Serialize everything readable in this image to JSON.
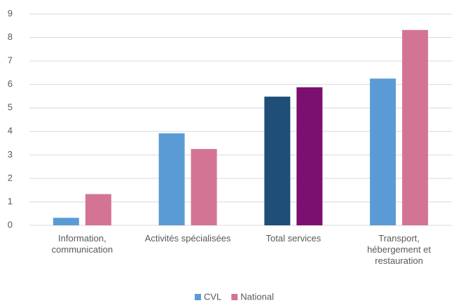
{
  "chart_data": {
    "type": "bar",
    "categories": [
      "Information,\ncommunication",
      "Activités spécialisées",
      "Total services",
      "Transport,\nhébergement et\nrestauration"
    ],
    "series": [
      {
        "name": "CVL",
        "color": "#5b9bd5",
        "colors": [
          "#5b9bd5",
          "#5b9bd5",
          "#1f4e79",
          "#5b9bd5"
        ],
        "values": [
          0.32,
          3.92,
          5.48,
          6.25
        ]
      },
      {
        "name": "National",
        "color": "#d47494",
        "colors": [
          "#d47494",
          "#d47494",
          "#7b1070",
          "#d47494"
        ],
        "values": [
          1.33,
          3.25,
          5.88,
          8.32
        ]
      }
    ],
    "ylim": [
      0,
      9
    ],
    "yticks": [
      0,
      1,
      2,
      3,
      4,
      5,
      6,
      7,
      8,
      9
    ],
    "grid": true,
    "legend": "bottom"
  }
}
